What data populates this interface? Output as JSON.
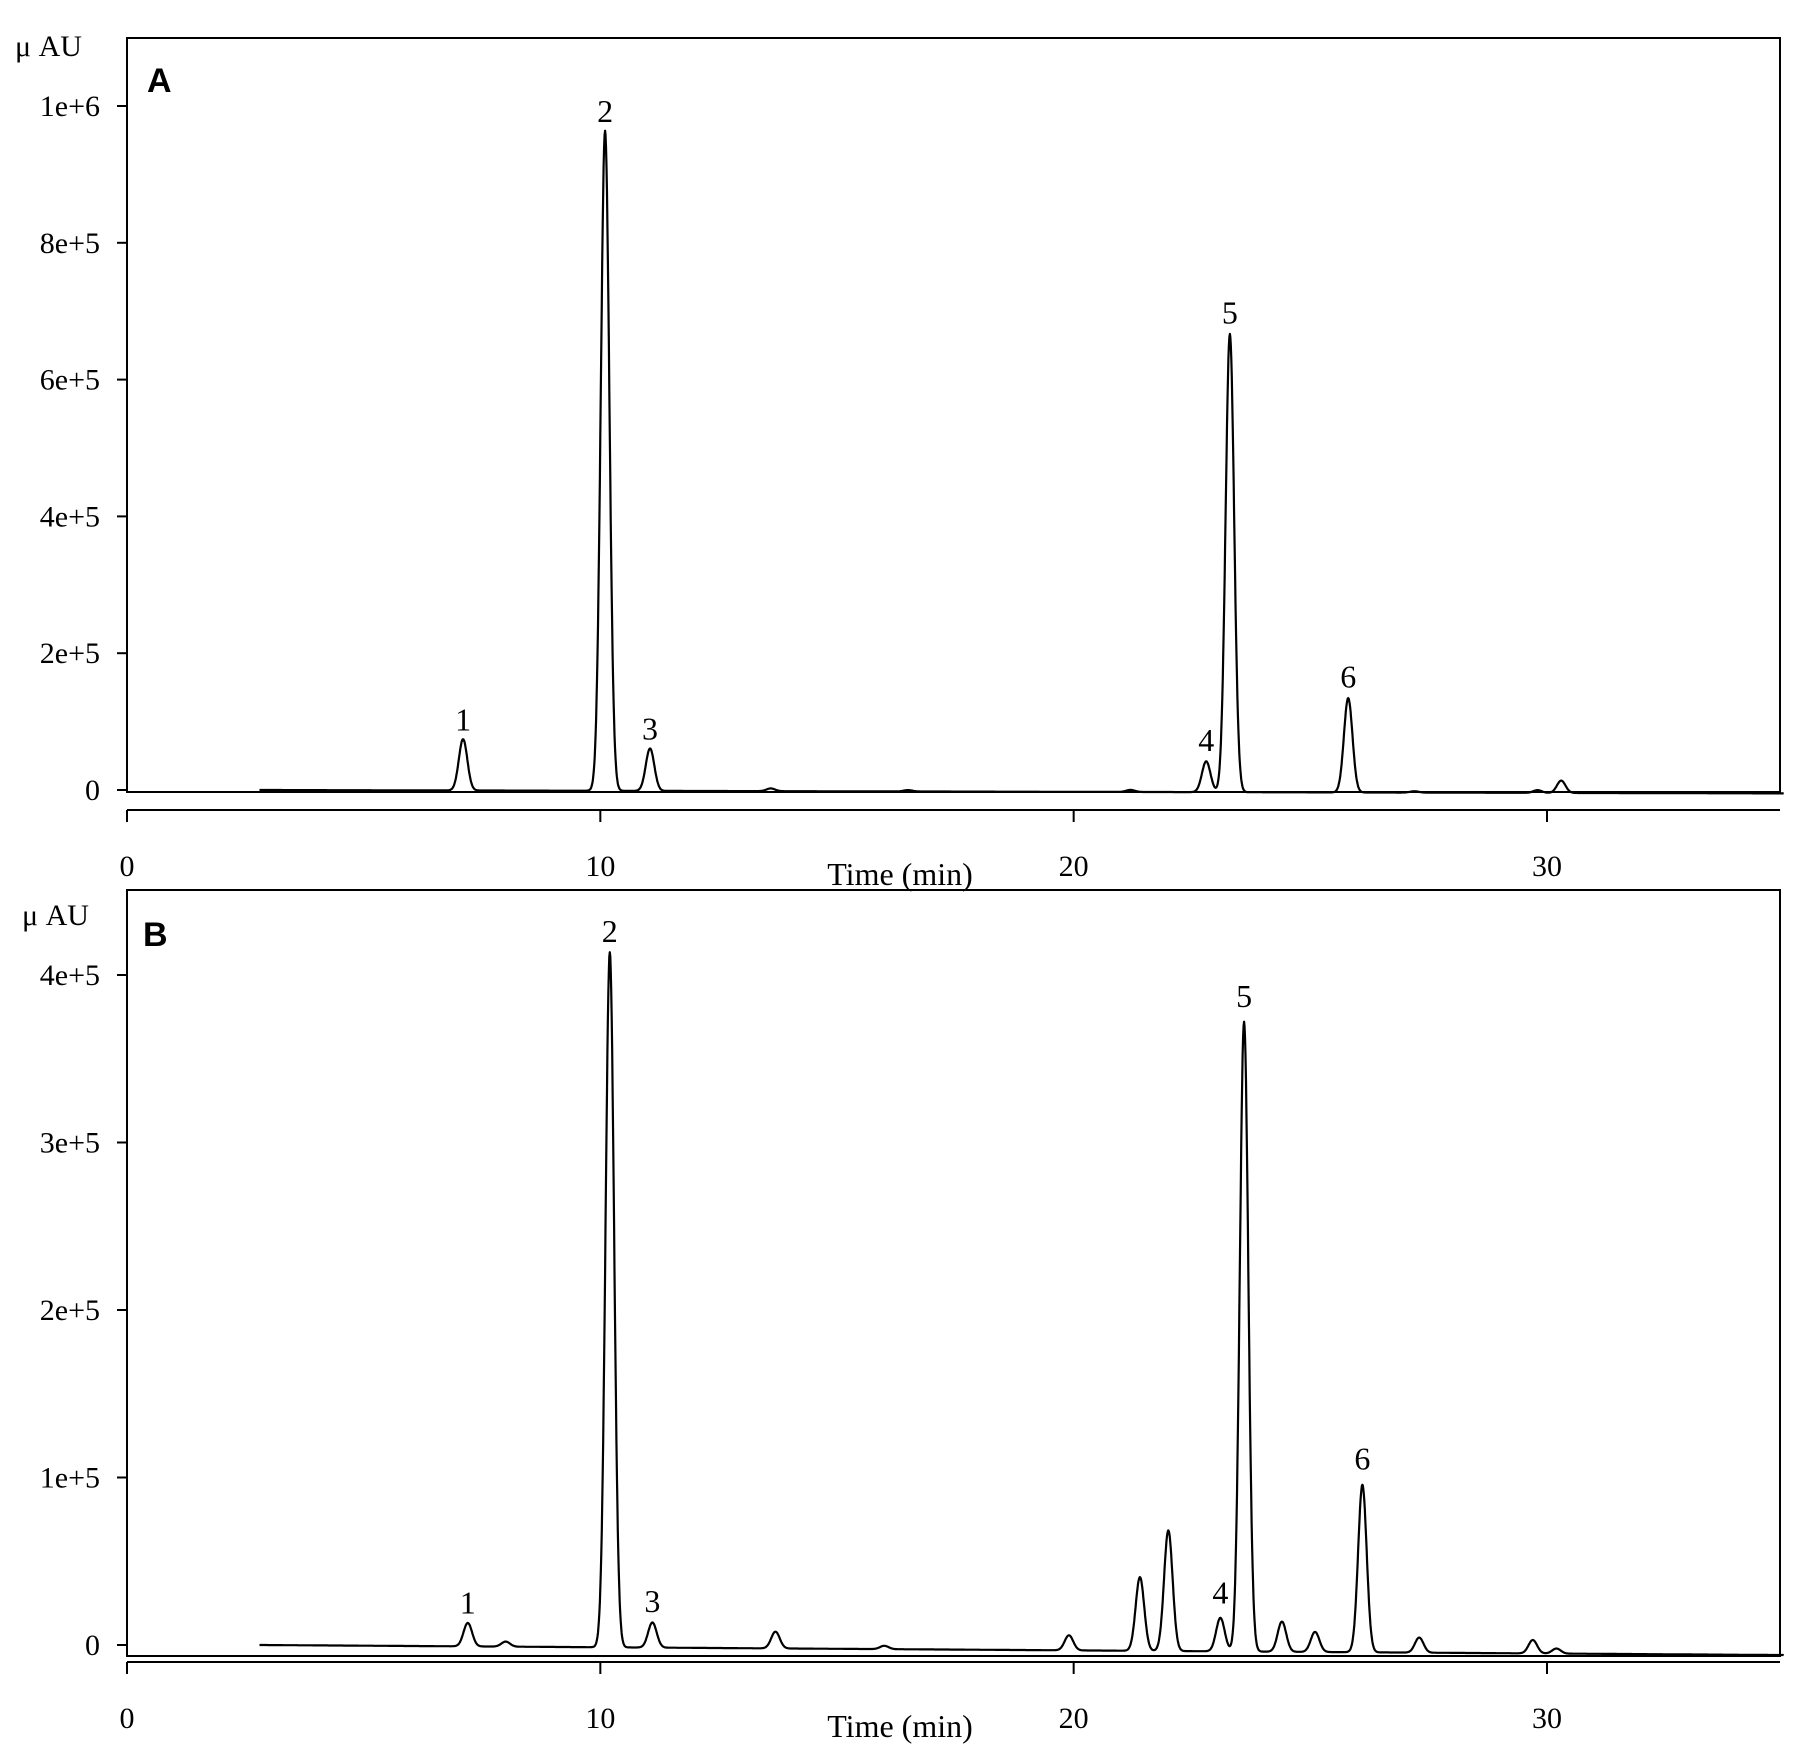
{
  "chart_data": [
    {
      "type": "line",
      "panel_label": "A",
      "y_unit": "μ AU",
      "xlabel": "Time (min)",
      "xlim": [
        0,
        35
      ],
      "ylim": [
        -20000,
        1100000
      ],
      "x_ticks": [
        0,
        10,
        20,
        30
      ],
      "x_tick_labels": [
        "0",
        "10",
        "20",
        "30"
      ],
      "y_ticks": [
        0,
        200000,
        400000,
        600000,
        800000,
        1000000
      ],
      "y_tick_labels": [
        "0",
        "2e+5",
        "4e+5",
        "6e+5",
        "8e+5",
        "1e+6"
      ],
      "baseline": {
        "start": 2.8,
        "end": 35,
        "start_value": 0,
        "end_value": -5000
      },
      "peaks": [
        {
          "label": "1",
          "x": 7.1,
          "y": 75000
        },
        {
          "label": "2",
          "x": 10.1,
          "y": 965000
        },
        {
          "label": "3",
          "x": 11.05,
          "y": 62000
        },
        {
          "label": "4",
          "x": 22.8,
          "y": 45000
        },
        {
          "label": "5",
          "x": 23.3,
          "y": 670000
        },
        {
          "label": "6",
          "x": 25.8,
          "y": 138000
        }
      ],
      "minor_peaks": [
        {
          "x": 13.6,
          "y": 4000
        },
        {
          "x": 16.5,
          "y": 2000
        },
        {
          "x": 21.2,
          "y": 3000
        },
        {
          "x": 27.2,
          "y": 2000
        },
        {
          "x": 29.8,
          "y": 4000
        },
        {
          "x": 30.3,
          "y": 18000
        }
      ]
    },
    {
      "type": "line",
      "panel_label": "B",
      "y_unit": "μ AU",
      "xlabel": "Time (min)",
      "xlim": [
        0,
        35
      ],
      "ylim": [
        -5000,
        450000
      ],
      "x_ticks": [
        0,
        10,
        20,
        30
      ],
      "x_tick_labels": [
        "0",
        "10",
        "20",
        "30"
      ],
      "y_ticks": [
        0,
        100000,
        200000,
        300000,
        400000
      ],
      "y_tick_labels": [
        "0",
        "1e+5",
        "2e+5",
        "3e+5",
        "4e+5"
      ],
      "baseline": {
        "start": 2.8,
        "end": 35,
        "start_value": 0,
        "end_value": -6000
      },
      "peaks": [
        {
          "label": "1",
          "x": 7.2,
          "y": 14000
        },
        {
          "label": "2",
          "x": 10.2,
          "y": 415000
        },
        {
          "label": "3",
          "x": 11.1,
          "y": 15000
        },
        {
          "label": "4",
          "x": 23.1,
          "y": 20000
        },
        {
          "label": "5",
          "x": 23.6,
          "y": 376000
        },
        {
          "label": "6",
          "x": 26.1,
          "y": 100000
        }
      ],
      "minor_peaks": [
        {
          "x": 8.0,
          "y": 3000
        },
        {
          "x": 13.7,
          "y": 10000
        },
        {
          "x": 16.0,
          "y": 2000
        },
        {
          "x": 19.9,
          "y": 9000
        },
        {
          "x": 21.4,
          "y": 44000
        },
        {
          "x": 22.0,
          "y": 72000
        },
        {
          "x": 24.4,
          "y": 18000
        },
        {
          "x": 25.1,
          "y": 12000
        },
        {
          "x": 27.3,
          "y": 9000
        },
        {
          "x": 29.7,
          "y": 8000
        },
        {
          "x": 30.2,
          "y": 3000
        }
      ]
    }
  ]
}
